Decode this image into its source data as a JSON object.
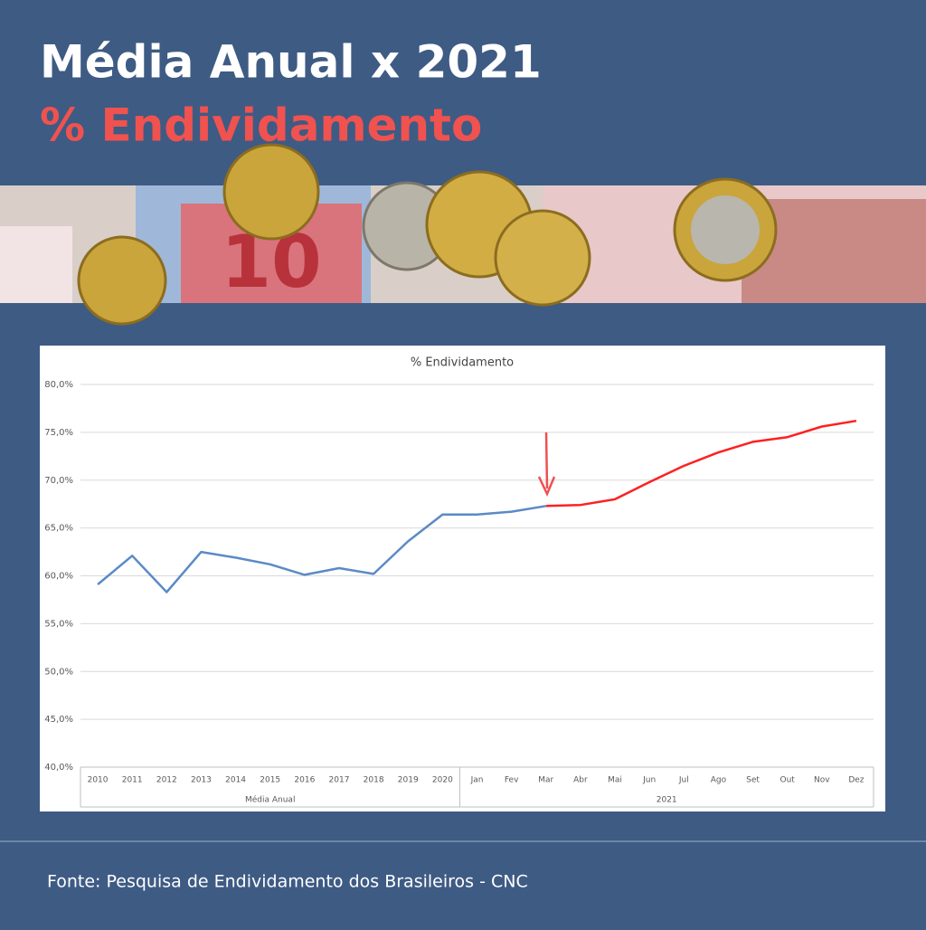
{
  "header": {
    "title": "Média Anual x 2021",
    "subtitle": "% Endividamento"
  },
  "chart_data": {
    "type": "line",
    "title": "% Endividamento",
    "groups": [
      {
        "label": "Média Anual",
        "categories": [
          "2010",
          "2011",
          "2012",
          "2013",
          "2014",
          "2015",
          "2016",
          "2017",
          "2018",
          "2019",
          "2020"
        ]
      },
      {
        "label": "2021",
        "categories": [
          "Jan",
          "Fev",
          "Mar",
          "Abr",
          "Mai",
          "Jun",
          "Jul",
          "Ago",
          "Set",
          "Out",
          "Nov",
          "Dez"
        ]
      }
    ],
    "series": [
      {
        "color": "#5b8ac6",
        "values": [
          59.1,
          62.1,
          58.3,
          62.5,
          61.9,
          61.2,
          60.1,
          60.8,
          60.2,
          63.6,
          66.4,
          66.4,
          66.7,
          67.3,
          null,
          null,
          null,
          null,
          null,
          null,
          null,
          null,
          null
        ]
      },
      {
        "color": "#ff2020",
        "values": [
          null,
          null,
          null,
          null,
          null,
          null,
          null,
          null,
          null,
          null,
          null,
          null,
          null,
          67.3,
          67.4,
          68.0,
          69.8,
          71.5,
          72.9,
          74.0,
          74.5,
          75.6,
          76.2
        ]
      }
    ],
    "ylim": [
      40,
      80
    ],
    "yticks": [
      {
        "value": 40,
        "label": "40,0%"
      },
      {
        "value": 45,
        "label": "45,0%"
      },
      {
        "value": 50,
        "label": "50,0%"
      },
      {
        "value": 55,
        "label": "55,0%"
      },
      {
        "value": 60,
        "label": "60,0%"
      },
      {
        "value": 65,
        "label": "65,0%"
      },
      {
        "value": 70,
        "label": "70,0%"
      },
      {
        "value": 75,
        "label": "75,0%"
      },
      {
        "value": 80,
        "label": "80,0%"
      }
    ],
    "grid": true
  },
  "source": "Fonte: Pesquisa de Endividamento dos Brasileiros - CNC"
}
